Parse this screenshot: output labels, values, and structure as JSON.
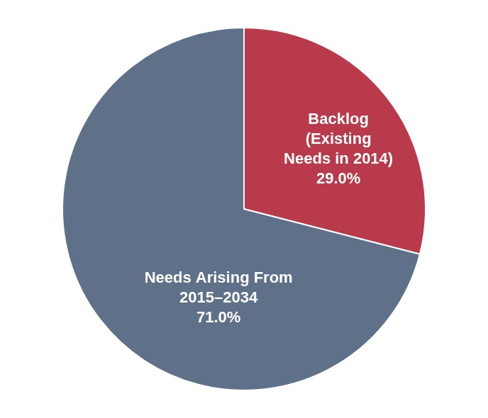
{
  "chart_data": {
    "type": "pie",
    "categories": [
      [
        "Backlog",
        "(Existing",
        "Needs in 2014)"
      ],
      [
        "Needs Arising From",
        "2015–2034"
      ]
    ],
    "values": [
      29.0,
      71.0
    ],
    "value_labels": [
      "29.0%",
      "71.0%"
    ],
    "colors": [
      "#b83a4b",
      "#5f7189"
    ],
    "data_labels": true
  }
}
